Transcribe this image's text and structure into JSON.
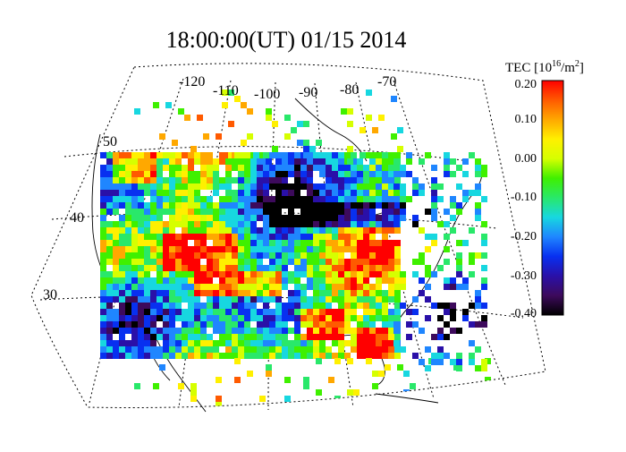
{
  "title": "18:00:00(UT)  01/15 2014",
  "map": {
    "longitude_labels": [
      "-120",
      "-110",
      "-100",
      "-90",
      "-80",
      "-70"
    ],
    "latitude_labels": [
      "50",
      "40",
      "30"
    ]
  },
  "colorbar": {
    "label_base": "TEC [10",
    "label_exp": "16",
    "label_unit": "/m",
    "label_exp2": "2",
    "label_end": "]",
    "ticks": [
      "0.20",
      "0.10",
      "0.00",
      "-0.10",
      "-0.20",
      "-0.30",
      "-0.40"
    ],
    "range": [
      -0.4,
      0.2
    ],
    "colormap": [
      "#000000",
      "#3d0a5c",
      "#2a10a8",
      "#0830f0",
      "#1f86ff",
      "#17d7e0",
      "#29e86a",
      "#3ff000",
      "#d6ff00",
      "#fff000",
      "#ffa800",
      "#ff5a00",
      "#ff0000"
    ]
  }
}
